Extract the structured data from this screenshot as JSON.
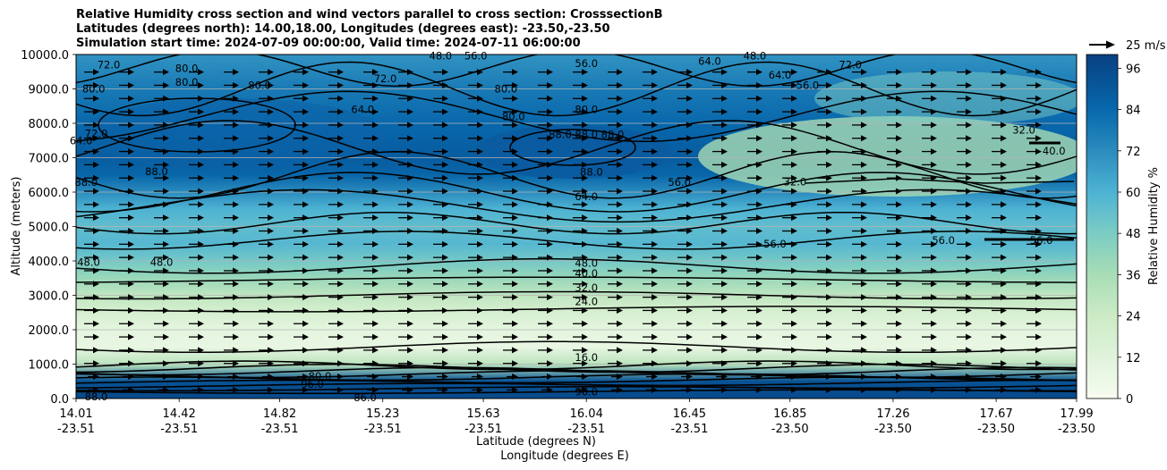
{
  "chart_data": {
    "type": "contour",
    "title": [
      "Relative Humidity cross section and wind vectors parallel to cross section: CrosssectionB",
      "Latitudes (degrees north): 14.00,18.00, Longitudes (degrees east): -23.50,-23.50",
      "Simulation start time: 2024-07-09 00:00:00, Valid time: 2024-07-11 06:00:00"
    ],
    "ylabel": "Altitude (meters)",
    "xlabel_lat": "Latitude (degrees N)",
    "xlabel_lon": "Longitude (degrees E)",
    "ylim": [
      0,
      10000
    ],
    "y_ticks": [
      "0.0",
      "1000.0",
      "2000.0",
      "3000.0",
      "4000.0",
      "5000.0",
      "6000.0",
      "7000.0",
      "8000.0",
      "9000.0",
      "10000.0"
    ],
    "x_ticks": [
      {
        "lat": "14.01",
        "lon": "-23.51"
      },
      {
        "lat": "14.42",
        "lon": "-23.51"
      },
      {
        "lat": "14.82",
        "lon": "-23.51"
      },
      {
        "lat": "15.23",
        "lon": "-23.51"
      },
      {
        "lat": "15.63",
        "lon": "-23.51"
      },
      {
        "lat": "16.04",
        "lon": "-23.51"
      },
      {
        "lat": "16.45",
        "lon": "-23.51"
      },
      {
        "lat": "16.85",
        "lon": "-23.50"
      },
      {
        "lat": "17.26",
        "lon": "-23.50"
      },
      {
        "lat": "17.67",
        "lon": "-23.50"
      },
      {
        "lat": "17.99",
        "lon": "-23.50"
      }
    ],
    "grid": "horizontal",
    "colorbar": {
      "label": "Relative Humidity %",
      "range": [
        0,
        100
      ],
      "ticks": [
        "0",
        "12",
        "24",
        "36",
        "48",
        "60",
        "72",
        "84",
        "96"
      ],
      "colormap": "GnBu"
    },
    "quiver_key": "25 m/s",
    "rh_profile": [
      {
        "alt": 0,
        "rh": 96
      },
      {
        "alt": 500,
        "rh": 93
      },
      {
        "alt": 1000,
        "rh": 30
      },
      {
        "alt": 1500,
        "rh": 8
      },
      {
        "alt": 2000,
        "rh": 10
      },
      {
        "alt": 2500,
        "rh": 18
      },
      {
        "alt": 3000,
        "rh": 28
      },
      {
        "alt": 3500,
        "rh": 40
      },
      {
        "alt": 4000,
        "rh": 50
      },
      {
        "alt": 4500,
        "rh": 58
      },
      {
        "alt": 5000,
        "rh": 55
      },
      {
        "alt": 5500,
        "rh": 60
      },
      {
        "alt": 6000,
        "rh": 72
      },
      {
        "alt": 6500,
        "rh": 85
      },
      {
        "alt": 7000,
        "rh": 89
      },
      {
        "alt": 8000,
        "rh": 84
      },
      {
        "alt": 9000,
        "rh": 78
      },
      {
        "alt": 10000,
        "rh": 70
      }
    ],
    "contour_labels": [
      {
        "text": "88.0",
        "x": 14.09,
        "y": 50
      },
      {
        "text": "80.0",
        "x": 14.98,
        "y": 650
      },
      {
        "text": "86.0",
        "x": 15.16,
        "y": 30
      },
      {
        "text": "96.0",
        "x": 14.95,
        "y": 420
      },
      {
        "text": "96.0",
        "x": 16.04,
        "y": 200
      },
      {
        "text": "16.0",
        "x": 16.04,
        "y": 1200
      },
      {
        "text": "24.0",
        "x": 16.04,
        "y": 2820
      },
      {
        "text": "32.0",
        "x": 16.04,
        "y": 3220
      },
      {
        "text": "40.0",
        "x": 16.04,
        "y": 3640
      },
      {
        "text": "48.0",
        "x": 16.04,
        "y": 3940
      },
      {
        "text": "48.0",
        "x": 14.06,
        "y": 3960
      },
      {
        "text": "48.0",
        "x": 14.35,
        "y": 3960
      },
      {
        "text": "64.0",
        "x": 16.04,
        "y": 5870
      },
      {
        "text": "88.0",
        "x": 16.06,
        "y": 6580
      },
      {
        "text": "56.0",
        "x": 16.41,
        "y": 6280
      },
      {
        "text": "88.0",
        "x": 14.05,
        "y": 6280
      },
      {
        "text": "88.0",
        "x": 14.33,
        "y": 6600
      },
      {
        "text": "64.0",
        "x": 14.03,
        "y": 7500
      },
      {
        "text": "72.0",
        "x": 14.09,
        "y": 7700
      },
      {
        "text": "88.0 88.0 88.0",
        "x": 16.04,
        "y": 7680
      },
      {
        "text": "80.0",
        "x": 16.04,
        "y": 8400
      },
      {
        "text": "80.0",
        "x": 15.75,
        "y": 8200
      },
      {
        "text": "80.0",
        "x": 15.72,
        "y": 9000
      },
      {
        "text": "64.0",
        "x": 15.15,
        "y": 8400
      },
      {
        "text": "72.0",
        "x": 15.24,
        "y": 9300
      },
      {
        "text": "80.0",
        "x": 14.74,
        "y": 9100
      },
      {
        "text": "80.0",
        "x": 14.45,
        "y": 9200
      },
      {
        "text": "80.0",
        "x": 14.45,
        "y": 9600
      },
      {
        "text": "80.0",
        "x": 14.08,
        "y": 9000
      },
      {
        "text": "72.0",
        "x": 14.14,
        "y": 9700
      },
      {
        "text": "72.0",
        "x": 17.09,
        "y": 9700
      },
      {
        "text": "64.0",
        "x": 16.81,
        "y": 9400
      },
      {
        "text": "64.0",
        "x": 16.53,
        "y": 9800
      },
      {
        "text": "56.0",
        "x": 16.04,
        "y": 9740
      },
      {
        "text": "56.0",
        "x": 16.92,
        "y": 9100
      },
      {
        "text": "48.0",
        "x": 15.46,
        "y": 9960
      },
      {
        "text": "48.0",
        "x": 16.71,
        "y": 9960
      },
      {
        "text": "56.0",
        "x": 15.6,
        "y": 9960
      },
      {
        "text": "32.0",
        "x": 17.78,
        "y": 7800
      },
      {
        "text": "40.0",
        "x": 17.9,
        "y": 7200
      },
      {
        "text": "32.0",
        "x": 16.87,
        "y": 6300
      },
      {
        "text": "56.0",
        "x": 16.79,
        "y": 4500
      },
      {
        "text": "56.0",
        "x": 17.46,
        "y": 4600
      },
      {
        "text": "56.0",
        "x": 17.85,
        "y": 4600
      }
    ]
  }
}
